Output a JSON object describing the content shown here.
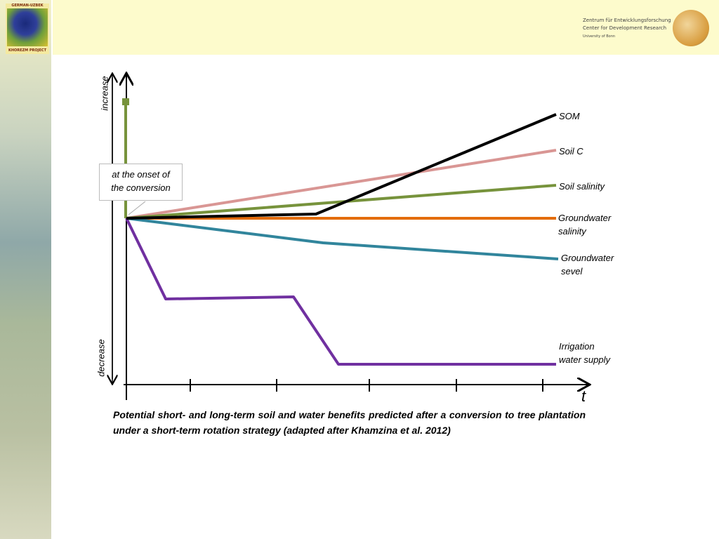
{
  "header": {
    "logo_top": "GERMAN-UZBEK",
    "logo_bottom": "KHOREZM PROJECT",
    "institute": [
      "Zentrum für Entwicklungsforschung",
      "Center for Development Research",
      "University of Bonn"
    ]
  },
  "diagram": {
    "axis_top": "increase",
    "axis_bottom": "decrease",
    "x_label": "t",
    "callout": [
      "at the onset of",
      "the conversion"
    ],
    "labels": [
      [
        "SOM"
      ],
      [
        "Soil C"
      ],
      [
        "Soil salinity"
      ],
      [
        "Groundwater",
        "salinity"
      ],
      [
        "Groundwater",
        "sevel"
      ],
      [
        "Irrigation",
        "water supply"
      ]
    ]
  },
  "caption": "Potential short- and long-term soil and water benefits predicted after a conversion to tree plantation under a short-term rotation strategy (adapted after Khamzina et al. 2012)"
}
